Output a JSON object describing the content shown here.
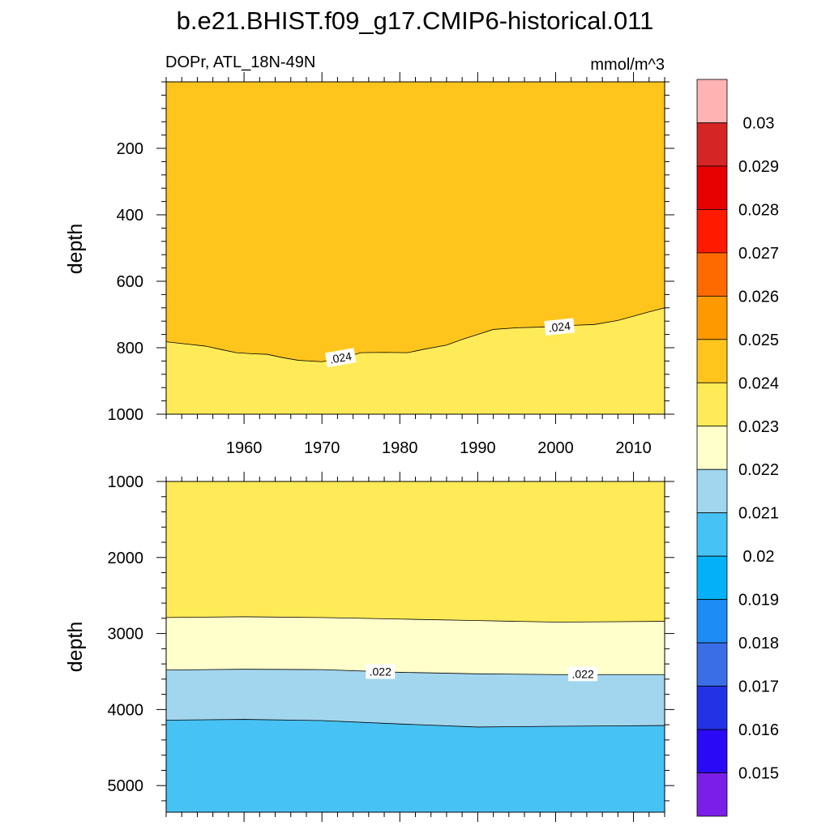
{
  "title": "b.e21.BHIST.f09_g17.CMIP6-historical.011",
  "colors": {
    "palette": [
      "#7b1fe8",
      "#2a0af5",
      "#2233e6",
      "#3a6ee6",
      "#1e8cf5",
      "#04b1f8",
      "#47c2f4",
      "#a2d6ef",
      "#ffffcc",
      "#ffeb57",
      "#ffc51d",
      "#ff9900",
      "#ff6a00",
      "#ff1a00",
      "#e60000",
      "#d62525",
      "#ffb3b3"
    ],
    "line": "#000000",
    "label_bg": "#ffffff"
  },
  "chart_data": [
    {
      "type": "contour",
      "panel": "top",
      "left_title": "DOPr, ATL_18N-49N",
      "right_title": "mmol/m^3",
      "ylabel": "depth",
      "xlabel": "",
      "xlim": [
        1950,
        2014
      ],
      "ylim": [
        1000,
        0
      ],
      "xticks": [
        1960,
        1970,
        1980,
        1990,
        2000,
        2010
      ],
      "xtick_labels": [
        "1960",
        "1970",
        "1980",
        "1990",
        "2000",
        "2010"
      ],
      "yticks": [
        200,
        400,
        600,
        800,
        1000
      ],
      "ytick_labels": [
        "200",
        "400",
        "600",
        "800",
        "1000"
      ],
      "regions": [
        {
          "level": "0.024-0.025",
          "color_index": 10,
          "position": "above"
        },
        {
          "level": "0.023-0.024",
          "color_index": 9,
          "position": "below"
        }
      ],
      "contours": [
        {
          "level_label": ".024",
          "x": [
            1950,
            1953,
            1955,
            1957,
            1959,
            1961,
            1963,
            1965,
            1967,
            1970,
            1973,
            1975,
            1978,
            1981,
            1983,
            1986,
            1988,
            1990,
            1992,
            1995,
            1998,
            2002,
            2005,
            2008,
            2012,
            2014
          ],
          "depth": [
            782,
            790,
            795,
            805,
            815,
            818,
            820,
            830,
            838,
            842,
            828,
            815,
            814,
            815,
            805,
            792,
            775,
            760,
            745,
            740,
            738,
            733,
            730,
            718,
            692,
            680
          ]
        }
      ],
      "contour_labels": [
        {
          "text": ".024",
          "x": 1972.4,
          "depth": 830,
          "angle": -10
        },
        {
          "text": ".024",
          "x": 2000.5,
          "depth": 737,
          "angle": -6
        }
      ]
    },
    {
      "type": "contour",
      "panel": "bottom",
      "ylabel": "depth",
      "xlim": [
        1950,
        2014
      ],
      "ylim": [
        5350,
        1000
      ],
      "yticks": [
        1000,
        2000,
        3000,
        4000,
        5000
      ],
      "ytick_labels": [
        "1000",
        "2000",
        "3000",
        "4000",
        "5000"
      ],
      "xticks": [
        1960,
        1970,
        1980,
        1990,
        2000,
        2010
      ],
      "regions": [
        {
          "level": "0.023-0.024",
          "color_index": 9
        },
        {
          "level": "0.022-0.023",
          "color_index": 8
        },
        {
          "level": "0.021-0.022",
          "color_index": 7
        },
        {
          "level": "0.02-0.021",
          "color_index": 6
        }
      ],
      "contours": [
        {
          "level_label": ".023",
          "x": [
            1950,
            1960,
            1970,
            1980,
            1990,
            2000,
            2014
          ],
          "depth": [
            2790,
            2780,
            2790,
            2810,
            2830,
            2850,
            2840
          ]
        },
        {
          "level_label": ".022",
          "x": [
            1950,
            1960,
            1970,
            1980,
            1990,
            2000,
            2014
          ],
          "depth": [
            3480,
            3470,
            3475,
            3510,
            3530,
            3540,
            3540
          ]
        },
        {
          "level_label": ".021",
          "x": [
            1950,
            1960,
            1970,
            1980,
            1990,
            2000,
            2014
          ],
          "depth": [
            4140,
            4130,
            4145,
            4190,
            4230,
            4220,
            4210
          ]
        }
      ],
      "contour_labels": [
        {
          "text": ".022",
          "x": 1977.5,
          "depth": 3500,
          "angle": 0
        },
        {
          "text": ".022",
          "x": 2003.5,
          "depth": 3530,
          "angle": 0
        }
      ]
    }
  ],
  "colorbar": {
    "labels": [
      "0.015",
      "0.016",
      "0.017",
      "0.018",
      "0.019",
      "0.02",
      "0.021",
      "0.022",
      "0.023",
      "0.024",
      "0.025",
      "0.026",
      "0.027",
      "0.028",
      "0.029",
      "0.03"
    ]
  }
}
